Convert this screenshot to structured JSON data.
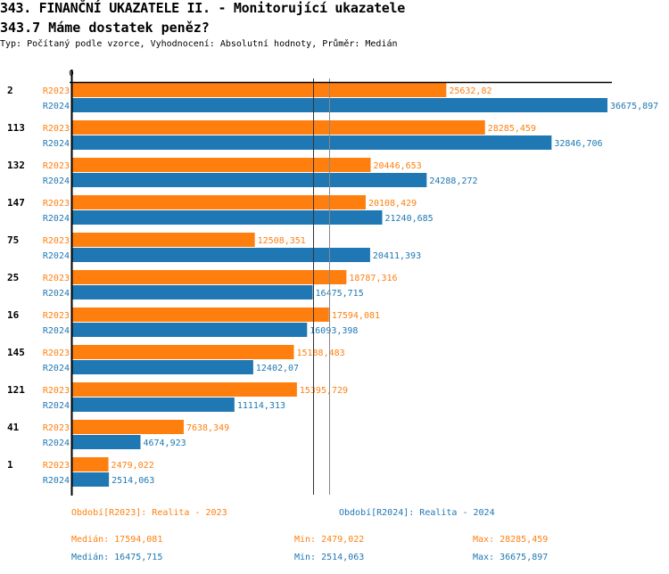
{
  "header": {
    "title": "343. FINANČNÍ UKAZATELE II. - Monitorující ukazatele",
    "subtitle": "343.7 Máme dostatek peněz?",
    "info": "Typ: Počítaný podle vzorce, Vyhodnocení: Absolutní hodnoty, Průměr: Medián"
  },
  "chart_data": {
    "type": "bar",
    "orientation": "horizontal",
    "x_tick_label": "0",
    "xlim": [
      0,
      36675.897
    ],
    "categories": [
      "2",
      "113",
      "132",
      "147",
      "75",
      "25",
      "16",
      "145",
      "121",
      "41",
      "1"
    ],
    "series": [
      {
        "name": "R2023",
        "color": "#ff7f0e",
        "values": [
          25632.82,
          28285.459,
          20446.653,
          20108.429,
          12508.351,
          18787.316,
          17594.081,
          15188.483,
          15395.729,
          7638.349,
          2479.022
        ],
        "labels": [
          "25632,82",
          "28285,459",
          "20446,653",
          "20108,429",
          "12508,351",
          "18787,316",
          "17594,081",
          "15188,483",
          "15395,729",
          "7638,349",
          "2479,022"
        ],
        "median": 17594.081
      },
      {
        "name": "R2024",
        "color": "#1f77b4",
        "values": [
          36675.897,
          32846.706,
          24288.272,
          21240.685,
          20411.393,
          16475.715,
          16093.398,
          12402.07,
          11114.313,
          4674.923,
          2514.063
        ],
        "labels": [
          "36675,897",
          "32846,706",
          "24288,272",
          "21240,685",
          "20411,393",
          "16475,715",
          "16093,398",
          "12402,07",
          "11114,313",
          "4674,923",
          "2514,063"
        ],
        "median": 16475.715
      }
    ]
  },
  "legend": {
    "r2023": "Období[R2023]: Realita - 2023",
    "r2024": "Období[R2024]: Realita - 2024"
  },
  "stats": {
    "r2023": {
      "median": "Medián: 17594,081",
      "min": "Min: 2479,022",
      "max": "Max: 28285,459"
    },
    "r2024": {
      "median": "Medián: 16475,715",
      "min": "Min: 2514,063",
      "max": "Max: 36675,897"
    }
  }
}
